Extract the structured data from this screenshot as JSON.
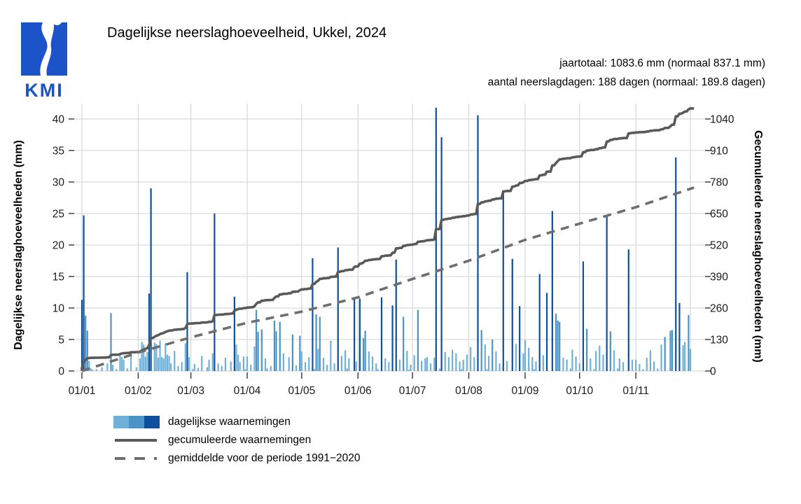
{
  "logo": {
    "text": "KMI",
    "color": "#1d53c8"
  },
  "header": {
    "title": "Dagelijkse neerslaghoeveelheid, Ukkel, 2024"
  },
  "annotations": {
    "line1": "jaartotaal: 1083.6 mm (normaal 837.1 mm)",
    "line2": "aantal neerslagdagen: 188 dagen (normaal: 189.8 dagen)"
  },
  "legend": {
    "items": [
      {
        "label": "dagelijkse waarnemingen"
      },
      {
        "label": "gecumuleerde waarnemingen"
      },
      {
        "label": "gemiddelde voor de periode 1991−2020"
      }
    ]
  },
  "chart_data": {
    "type": "bar",
    "title": "Dagelijkse neerslaghoeveelheid, Ukkel, 2024",
    "grid_color": "#d9d9d9",
    "tick_color": "#333333",
    "left_axis": {
      "label": "Dagelijkse neerslaghoeveelheden (mm)",
      "ticks": [
        0,
        5,
        10,
        15,
        20,
        25,
        30,
        35,
        40
      ],
      "range": [
        0,
        42.5
      ]
    },
    "right_axis": {
      "label": "Gecumuleerde neerslaghoeveelheden (mm)",
      "ticks": [
        0,
        130,
        260,
        390,
        520,
        650,
        780,
        910,
        1040
      ],
      "range": [
        0,
        1105
      ]
    },
    "x_axis": {
      "tick_labels": [
        "01/01",
        "01/02",
        "01/03",
        "01/04",
        "01/05",
        "01/06",
        "01/07",
        "01/08",
        "01/09",
        "01/10",
        "01/11"
      ],
      "month_start_days": [
        1,
        32,
        61,
        92,
        122,
        153,
        183,
        214,
        245,
        275,
        306,
        336
      ],
      "days_shown": 340
    },
    "bar_colors": {
      "light": "#6fb1d8",
      "medium": "#4a94c8",
      "dark": "#0d509e",
      "thresholds_mm": [
        5,
        10
      ]
    },
    "daily_rain": [
      [
        1,
        11.3
      ],
      [
        2,
        24.7
      ],
      [
        3,
        8.8
      ],
      [
        4,
        6.4
      ],
      [
        5,
        1.6
      ],
      [
        6,
        0.4
      ],
      [
        7,
        0.2
      ],
      [
        9,
        0.3
      ],
      [
        12,
        0.6
      ],
      [
        15,
        1.2
      ],
      [
        17,
        9.2
      ],
      [
        18,
        1.0
      ],
      [
        20,
        0.3
      ],
      [
        22,
        2.6
      ],
      [
        23,
        2.2
      ],
      [
        24,
        1.8
      ],
      [
        26,
        0.4
      ],
      [
        28,
        2.8
      ],
      [
        31,
        0.6
      ],
      [
        33,
        2.0
      ],
      [
        34,
        4.6
      ],
      [
        35,
        4.2
      ],
      [
        36,
        2.3
      ],
      [
        37,
        3.0
      ],
      [
        38,
        12.3
      ],
      [
        39,
        29.0
      ],
      [
        41,
        4.5
      ],
      [
        42,
        4.3
      ],
      [
        43,
        2.1
      ],
      [
        44,
        4.8
      ],
      [
        45,
        2.2
      ],
      [
        46,
        2.0
      ],
      [
        47,
        4.4
      ],
      [
        48,
        2.6
      ],
      [
        49,
        2.4
      ],
      [
        50,
        1.2
      ],
      [
        52,
        3.2
      ],
      [
        54,
        0.8
      ],
      [
        56,
        1.4
      ],
      [
        58,
        4.4
      ],
      [
        59,
        15.7
      ],
      [
        60,
        2.2
      ],
      [
        62,
        0.3
      ],
      [
        63,
        1.1
      ],
      [
        65,
        0.5
      ],
      [
        67,
        2.4
      ],
      [
        70,
        0.6
      ],
      [
        71,
        1.8
      ],
      [
        73,
        2.8
      ],
      [
        74,
        25.0
      ],
      [
        76,
        1.2
      ],
      [
        78,
        0.8
      ],
      [
        80,
        2.1
      ],
      [
        83,
        1.5
      ],
      [
        85,
        11.8
      ],
      [
        86,
        4.2
      ],
      [
        87,
        2.6
      ],
      [
        88,
        1.4
      ],
      [
        90,
        2.3
      ],
      [
        91,
        0.3
      ],
      [
        92,
        2.3
      ],
      [
        94,
        1.0
      ],
      [
        96,
        3.9
      ],
      [
        97,
        9.7
      ],
      [
        98,
        6.2
      ],
      [
        100,
        6.6
      ],
      [
        102,
        2.0
      ],
      [
        103,
        0.4
      ],
      [
        105,
        0.8
      ],
      [
        107,
        8.0
      ],
      [
        108,
        6.3
      ],
      [
        110,
        7.8
      ],
      [
        112,
        2.8
      ],
      [
        115,
        2.2
      ],
      [
        117,
        5.8
      ],
      [
        119,
        0.9
      ],
      [
        121,
        5.6
      ],
      [
        122,
        3.1
      ],
      [
        124,
        1.4
      ],
      [
        126,
        2.2
      ],
      [
        128,
        17.9
      ],
      [
        129,
        0.3
      ],
      [
        130,
        9.0
      ],
      [
        131,
        3.5
      ],
      [
        132,
        8.6
      ],
      [
        134,
        2.1
      ],
      [
        136,
        1.0
      ],
      [
        138,
        4.8
      ],
      [
        140,
        1.2
      ],
      [
        142,
        19.6
      ],
      [
        144,
        2.4
      ],
      [
        146,
        3.3
      ],
      [
        147,
        0.4
      ],
      [
        148,
        2.0
      ],
      [
        151,
        11.6
      ],
      [
        152,
        1.5
      ],
      [
        154,
        11.5
      ],
      [
        156,
        5.2
      ],
      [
        157,
        6.4
      ],
      [
        159,
        3.1
      ],
      [
        161,
        2.3
      ],
      [
        163,
        1.2
      ],
      [
        164,
        0.3
      ],
      [
        166,
        11.7
      ],
      [
        168,
        2.0
      ],
      [
        170,
        1.4
      ],
      [
        172,
        10.4
      ],
      [
        174,
        17.7
      ],
      [
        176,
        1.8
      ],
      [
        178,
        8.6
      ],
      [
        180,
        3.2
      ],
      [
        181,
        0.2
      ],
      [
        182,
        1.0
      ],
      [
        184,
        2.5
      ],
      [
        186,
        9.7
      ],
      [
        188,
        1.6
      ],
      [
        190,
        2.0
      ],
      [
        191,
        2.2
      ],
      [
        193,
        1.2
      ],
      [
        195,
        2.1
      ],
      [
        196,
        41.8
      ],
      [
        198,
        0.4
      ],
      [
        199,
        37.1
      ],
      [
        201,
        3.0
      ],
      [
        203,
        2.2
      ],
      [
        205,
        3.4
      ],
      [
        207,
        2.8
      ],
      [
        209,
        1.5
      ],
      [
        210,
        0.3
      ],
      [
        211,
        1.8
      ],
      [
        213,
        2.6
      ],
      [
        215,
        3.8
      ],
      [
        217,
        2.2
      ],
      [
        219,
        40.6
      ],
      [
        221,
        6.5
      ],
      [
        223,
        4.2
      ],
      [
        224,
        0.3
      ],
      [
        225,
        2.4
      ],
      [
        227,
        5.0
      ],
      [
        229,
        3.1
      ],
      [
        231,
        1.2
      ],
      [
        233,
        28.4
      ],
      [
        235,
        1.6
      ],
      [
        238,
        17.8
      ],
      [
        240,
        4.3
      ],
      [
        242,
        10.3
      ],
      [
        244,
        2.8
      ],
      [
        245,
        4.9
      ],
      [
        247,
        3.7
      ],
      [
        249,
        2.2
      ],
      [
        250,
        0.3
      ],
      [
        251,
        1.5
      ],
      [
        253,
        15.4
      ],
      [
        255,
        2.5
      ],
      [
        257,
        12.4
      ],
      [
        260,
        25.4
      ],
      [
        262,
        9.1
      ],
      [
        263,
        8.0
      ],
      [
        264,
        7.8
      ],
      [
        266,
        2.1
      ],
      [
        268,
        1.8
      ],
      [
        270,
        0.4
      ],
      [
        271,
        3.4
      ],
      [
        273,
        2.3
      ],
      [
        275,
        1.2
      ],
      [
        277,
        17.4
      ],
      [
        279,
        6.7
      ],
      [
        281,
        2.0
      ],
      [
        283,
        0.3
      ],
      [
        284,
        3.2
      ],
      [
        286,
        4.0
      ],
      [
        288,
        2.6
      ],
      [
        290,
        24.8
      ],
      [
        292,
        6.3
      ],
      [
        294,
        3.3
      ],
      [
        296,
        0.4
      ],
      [
        297,
        2.0
      ],
      [
        299,
        1.4
      ],
      [
        302,
        19.3
      ],
      [
        304,
        1.8
      ],
      [
        306,
        1.8
      ],
      [
        308,
        1.1
      ],
      [
        310,
        0.3
      ],
      [
        312,
        2.1
      ],
      [
        314,
        3.3
      ],
      [
        316,
        1.5
      ],
      [
        318,
        0.4
      ],
      [
        320,
        4.2
      ],
      [
        322,
        5.4
      ],
      [
        325,
        6.4
      ],
      [
        326,
        6.5
      ],
      [
        328,
        33.9
      ],
      [
        330,
        10.8
      ],
      [
        332,
        4.1
      ],
      [
        333,
        4.6
      ],
      [
        335,
        8.9
      ],
      [
        336,
        3.5
      ]
    ],
    "cumulative_series": {
      "name": "gecumuleerde waarnemingen",
      "total_mm": 1083.6,
      "color": "#595959"
    },
    "normal_series": {
      "name": "gemiddelde voor de periode 1991-2020",
      "color": "#6e6e6e",
      "days": [
        1,
        32,
        61,
        92,
        122,
        153,
        183,
        214,
        245,
        275,
        306,
        336,
        338
      ],
      "values": [
        0,
        76,
        139,
        199,
        245,
        304,
        380,
        455,
        541,
        608,
        676,
        752,
        757
      ]
    }
  }
}
